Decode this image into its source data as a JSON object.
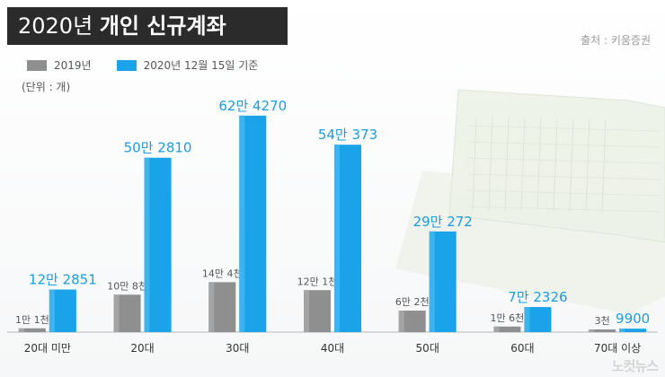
{
  "title_year": "2020년",
  "title_text": "개인 신규계좌",
  "source": "출처 : 키움증권",
  "unit": "(단위 : 개)",
  "watermark": "노컷뉴스",
  "colors": {
    "gray": "#8f8f8f",
    "blue": "#1aa3e8",
    "blue_label": "#1a9de0",
    "gray_label": "#555555"
  },
  "chart_data": {
    "type": "bar",
    "categories": [
      "20대 미만",
      "20대",
      "30대",
      "40대",
      "50대",
      "60대",
      "70대 이상"
    ],
    "series": [
      {
        "name": "2019년",
        "values": [
          11000,
          108000,
          144000,
          121000,
          62000,
          16000,
          3000
        ],
        "labels": [
          "1만 1천",
          "10만 8천",
          "14만 4천",
          "12만 1천",
          "6만 2천",
          "1만 6천",
          "3천"
        ]
      },
      {
        "name": "2020년 12월 15일 기준",
        "values": [
          122851,
          502810,
          624270,
          540373,
          290272,
          72326,
          9900
        ],
        "labels": [
          "12만 2851",
          "50만 2810",
          "62만 4270",
          "54만 373",
          "29만 272",
          "7만 2326",
          "9900"
        ]
      }
    ],
    "ylim": [
      0,
      660000
    ],
    "legend_position": "top-left",
    "grid": false
  }
}
